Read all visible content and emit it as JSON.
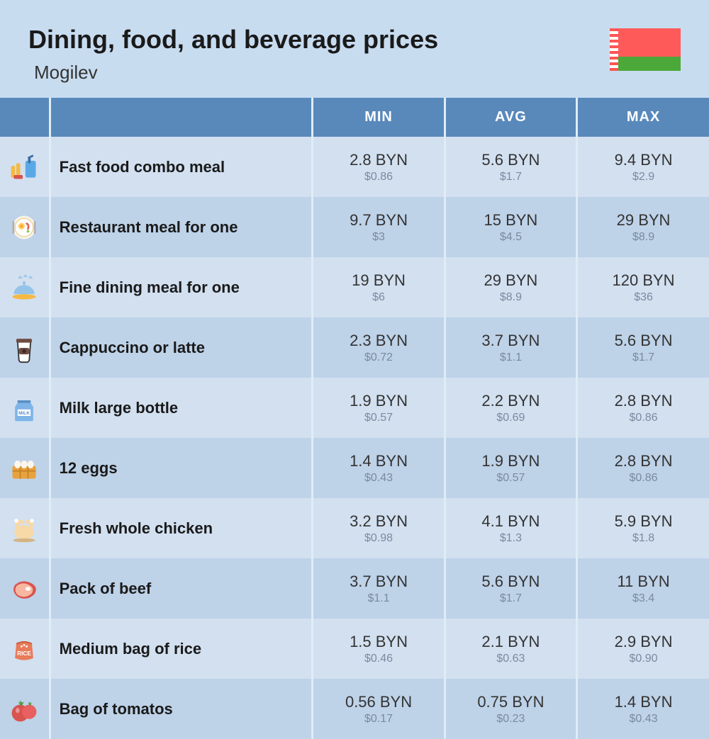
{
  "header": {
    "title": "Dining, food, and beverage prices",
    "subtitle": "Mogilev"
  },
  "columns": [
    "MIN",
    "AVG",
    "MAX"
  ],
  "currency_main": "BYN",
  "currency_sub_prefix": "$",
  "colors": {
    "page_bg": "#c8dcf0",
    "header_bg": "#5989bb",
    "header_text": "#ffffff",
    "row_even": "#d2e0f0",
    "row_odd": "#bed2e8",
    "border": "#e0ecf6",
    "text_main": "#333333",
    "text_sub": "#7a8aa0",
    "flag_red": "#ff5a5a",
    "flag_green": "#4ca838"
  },
  "rows": [
    {
      "icon": "fastfood",
      "name": "Fast food combo meal",
      "min": "2.8 BYN",
      "min_sub": "$0.86",
      "avg": "5.6 BYN",
      "avg_sub": "$1.7",
      "max": "9.4 BYN",
      "max_sub": "$2.9"
    },
    {
      "icon": "restaurant",
      "name": "Restaurant meal for one",
      "min": "9.7 BYN",
      "min_sub": "$3",
      "avg": "15 BYN",
      "avg_sub": "$4.5",
      "max": "29 BYN",
      "max_sub": "$8.9"
    },
    {
      "icon": "finedining",
      "name": "Fine dining meal for one",
      "min": "19 BYN",
      "min_sub": "$6",
      "avg": "29 BYN",
      "avg_sub": "$8.9",
      "max": "120 BYN",
      "max_sub": "$36"
    },
    {
      "icon": "coffee",
      "name": "Cappuccino or latte",
      "min": "2.3 BYN",
      "min_sub": "$0.72",
      "avg": "3.7 BYN",
      "avg_sub": "$1.1",
      "max": "5.6 BYN",
      "max_sub": "$1.7"
    },
    {
      "icon": "milk",
      "name": "Milk large bottle",
      "min": "1.9 BYN",
      "min_sub": "$0.57",
      "avg": "2.2 BYN",
      "avg_sub": "$0.69",
      "max": "2.8 BYN",
      "max_sub": "$0.86"
    },
    {
      "icon": "eggs",
      "name": "12 eggs",
      "min": "1.4 BYN",
      "min_sub": "$0.43",
      "avg": "1.9 BYN",
      "avg_sub": "$0.57",
      "max": "2.8 BYN",
      "max_sub": "$0.86"
    },
    {
      "icon": "chicken",
      "name": "Fresh whole chicken",
      "min": "3.2 BYN",
      "min_sub": "$0.98",
      "avg": "4.1 BYN",
      "avg_sub": "$1.3",
      "max": "5.9 BYN",
      "max_sub": "$1.8"
    },
    {
      "icon": "beef",
      "name": "Pack of beef",
      "min": "3.7 BYN",
      "min_sub": "$1.1",
      "avg": "5.6 BYN",
      "avg_sub": "$1.7",
      "max": "11 BYN",
      "max_sub": "$3.4"
    },
    {
      "icon": "rice",
      "name": "Medium bag of rice",
      "min": "1.5 BYN",
      "min_sub": "$0.46",
      "avg": "2.1 BYN",
      "avg_sub": "$0.63",
      "max": "2.9 BYN",
      "max_sub": "$0.90"
    },
    {
      "icon": "tomato",
      "name": "Bag of tomatos",
      "min": "0.56 BYN",
      "min_sub": "$0.17",
      "avg": "0.75 BYN",
      "avg_sub": "$0.23",
      "max": "1.4 BYN",
      "max_sub": "$0.43"
    }
  ]
}
